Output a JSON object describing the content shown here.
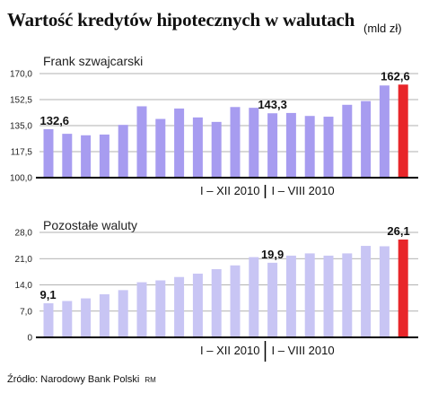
{
  "header": {
    "title": "Wartość kredytów hipotecznych w walutach",
    "unit": "(mld zł)"
  },
  "footer": {
    "source": "Źródło: Narodowy Bank Polski",
    "author": "RM"
  },
  "colors": {
    "bar": "#a79cf0",
    "bar_light": "#c8c5f4",
    "bar_highlight": "#e8262a",
    "grid": "#999999"
  },
  "chart_data": [
    {
      "type": "bar",
      "title": "Frank szwajcarski",
      "ylim": [
        100,
        170
      ],
      "yticks": [
        100.0,
        117.5,
        135.0,
        152.5,
        170.0
      ],
      "ytick_labels": [
        "100,0",
        "117,5",
        "135,0",
        "152,5",
        "170,0"
      ],
      "period_labels": [
        "I – XII 2010",
        "I – VIII 2010"
      ],
      "values": [
        132.6,
        129.5,
        128.5,
        129.0,
        135.5,
        148.0,
        139.5,
        146.5,
        140.5,
        137.5,
        147.5,
        147.0,
        143.3,
        143.5,
        141.5,
        141.0,
        149.0,
        151.5,
        162.0,
        162.6
      ],
      "annotations": [
        {
          "index": 0,
          "label": "132,6"
        },
        {
          "index": 12,
          "label": "143,3"
        },
        {
          "index": 19,
          "label": "162,6"
        }
      ],
      "highlight_index": 19
    },
    {
      "type": "bar",
      "title": "Pozostałe waluty",
      "ylim": [
        0,
        28
      ],
      "yticks": [
        0,
        7.0,
        14.0,
        21.0,
        28.0
      ],
      "ytick_labels": [
        "0",
        "7,0",
        "14,0",
        "21,0",
        "28,0"
      ],
      "period_labels": [
        "I – XII 2010",
        "I – VIII 2010"
      ],
      "values": [
        9.1,
        9.7,
        10.4,
        11.5,
        12.6,
        14.7,
        15.2,
        16.1,
        17.0,
        18.2,
        19.2,
        21.4,
        19.9,
        21.8,
        22.4,
        21.8,
        22.4,
        24.4,
        24.3,
        26.1
      ],
      "annotations": [
        {
          "index": 0,
          "label": "9,1"
        },
        {
          "index": 12,
          "label": "19,9"
        },
        {
          "index": 19,
          "label": "26,1"
        }
      ],
      "highlight_index": 19
    }
  ]
}
